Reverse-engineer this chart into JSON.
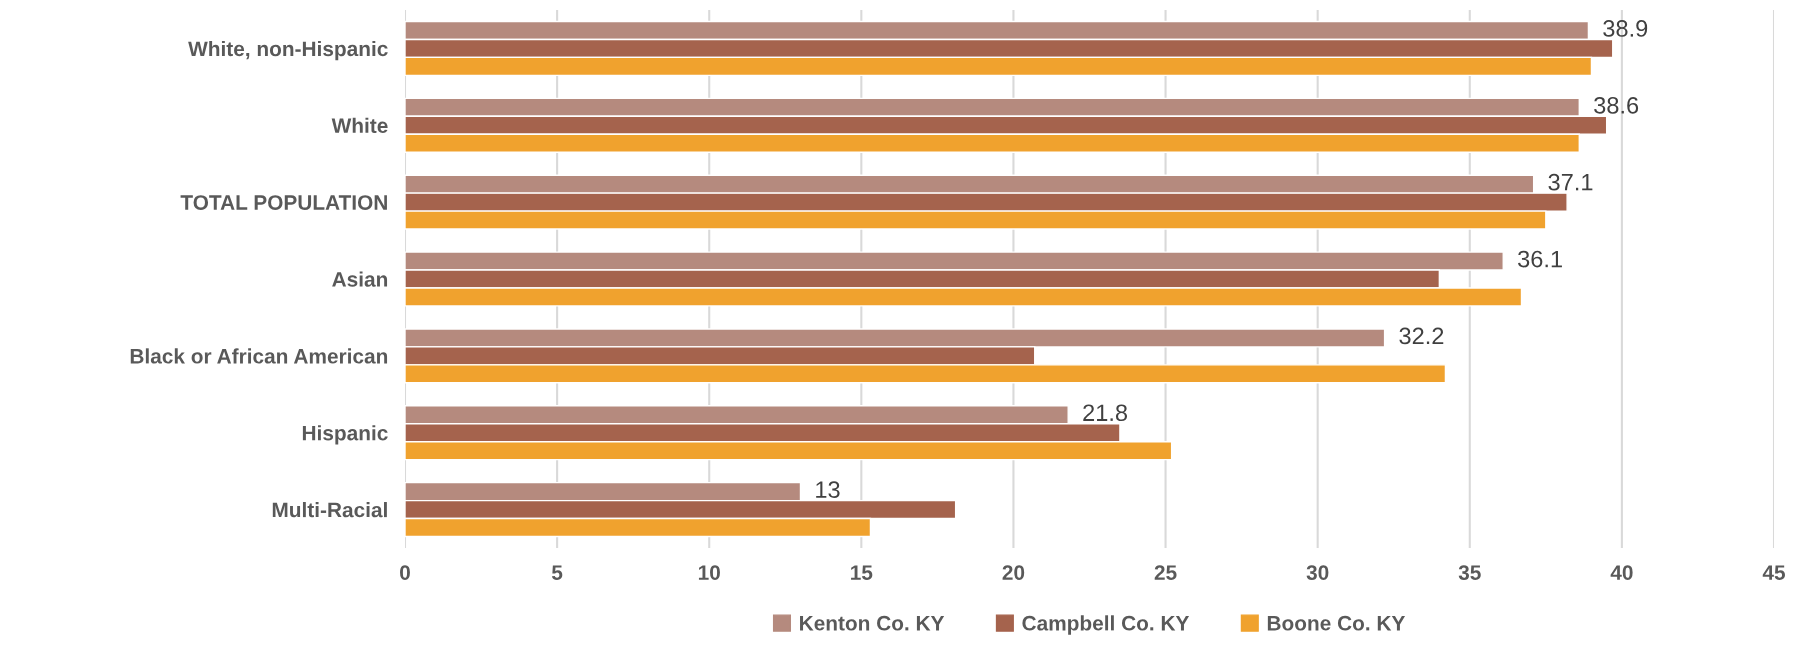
{
  "chart_data": {
    "type": "bar",
    "orientation": "horizontal",
    "categories": [
      "White, non-Hispanic",
      "White",
      "TOTAL POPULATION",
      "Asian",
      "Black or African American",
      "Hispanic",
      "Multi-Racial"
    ],
    "series": [
      {
        "name": "Kenton Co. KY",
        "color": "#b58a7e",
        "values": [
          38.9,
          38.6,
          37.1,
          36.1,
          32.2,
          21.8,
          13
        ],
        "value_labels": [
          "38.9",
          "38.6",
          "37.1",
          "36.1",
          "32.2",
          "21.8",
          "13"
        ]
      },
      {
        "name": "Campbell Co. KY",
        "color": "#a5634d",
        "values": [
          39.7,
          39.5,
          38.2,
          34.0,
          20.7,
          23.5,
          18.1
        ]
      },
      {
        "name": "Boone Co. KY",
        "color": "#f0a22e",
        "values": [
          39.0,
          38.6,
          37.5,
          36.7,
          34.2,
          25.2,
          15.3
        ]
      }
    ],
    "xlim": [
      0,
      45
    ],
    "xticks": [
      0,
      5,
      10,
      15,
      20,
      25,
      30,
      35,
      40,
      45
    ],
    "grid": "x",
    "legend": "bottom"
  }
}
